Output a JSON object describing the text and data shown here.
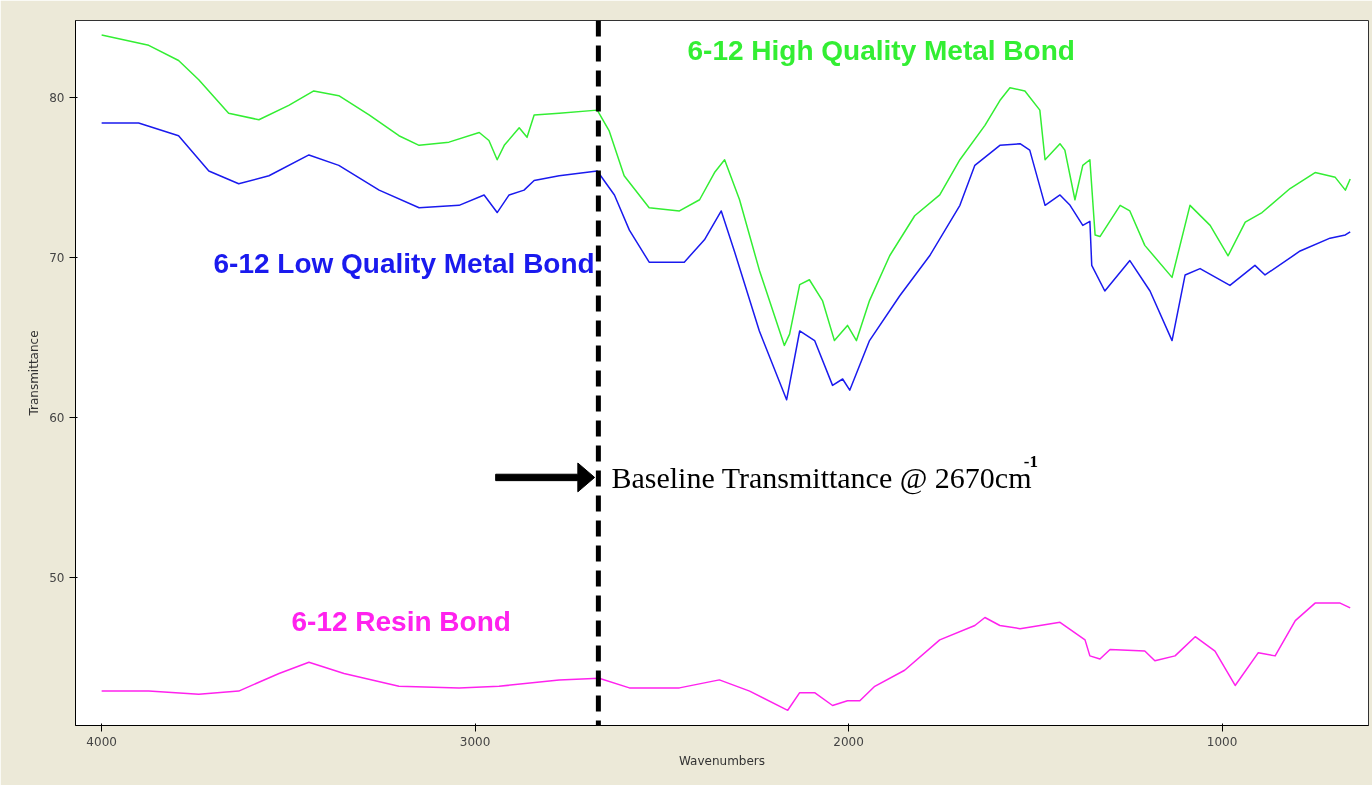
{
  "chart_data": {
    "type": "line",
    "xlabel": "Wavenumbers",
    "ylabel": "Transmittance",
    "xlim": [
      4070,
      608
    ],
    "ylim": [
      40.75,
      84.8
    ],
    "xticks": [
      4000,
      3000,
      2000,
      1000
    ],
    "yticks": [
      50,
      60,
      70,
      80
    ],
    "grid": false,
    "series": [
      {
        "name": "6-12 High Quality Metal Bond",
        "color": "#33ee33",
        "x": [
          4000,
          3874,
          3794,
          3740,
          3660,
          3579,
          3499,
          3432,
          3365,
          3284,
          3204,
          3150,
          3070,
          2989,
          2963,
          2941,
          2922,
          2882,
          2861,
          2842,
          2775,
          2673,
          2641,
          2601,
          2534,
          2453,
          2399,
          2359,
          2332,
          2292,
          2239,
          2172,
          2158,
          2131,
          2105,
          2070,
          2038,
          2003,
          1979,
          1944,
          1890,
          1823,
          1756,
          1702,
          1635,
          1595,
          1568,
          1528,
          1488,
          1474,
          1434,
          1421,
          1394,
          1373,
          1354,
          1340,
          1327,
          1273,
          1247,
          1207,
          1134,
          1086,
          1032,
          984,
          938,
          893,
          818,
          751,
          697,
          670,
          657
        ],
        "values": [
          83.9,
          83.25,
          82.3,
          81.1,
          79.0,
          78.6,
          79.5,
          80.4,
          80.1,
          78.9,
          77.6,
          77.0,
          77.2,
          77.8,
          77.3,
          76.1,
          77.0,
          78.1,
          77.5,
          78.9,
          79.0,
          79.2,
          77.9,
          75.1,
          73.1,
          72.9,
          73.6,
          75.3,
          76.1,
          73.6,
          69.2,
          64.5,
          65.2,
          68.3,
          68.6,
          67.3,
          64.8,
          65.75,
          64.8,
          67.3,
          70.1,
          72.6,
          73.9,
          76.1,
          78.25,
          79.8,
          80.6,
          80.4,
          79.2,
          76.1,
          77.1,
          76.7,
          73.6,
          75.75,
          76.1,
          71.4,
          71.3,
          73.25,
          72.9,
          70.75,
          68.75,
          73.25,
          72.0,
          70.1,
          72.2,
          72.8,
          74.3,
          75.3,
          75.0,
          74.2,
          74.9
        ]
      },
      {
        "name": "6-12 Low Quality Metal Bond",
        "color": "#1a1aee",
        "x": [
          4000,
          3901,
          3794,
          3713,
          3633,
          3552,
          3445,
          3365,
          3257,
          3150,
          3043,
          2976,
          2941,
          2909,
          2869,
          2842,
          2775,
          2673,
          2627,
          2587,
          2534,
          2440,
          2386,
          2341,
          2306,
          2239,
          2166,
          2131,
          2091,
          2043,
          2016,
          1997,
          1944,
          1863,
          1783,
          1702,
          1662,
          1595,
          1541,
          1515,
          1474,
          1434,
          1407,
          1373,
          1354,
          1349,
          1314,
          1247,
          1193,
          1134,
          1099,
          1059,
          979,
          912,
          885,
          791,
          711,
          670,
          657
        ],
        "values": [
          78.4,
          78.4,
          77.6,
          75.4,
          74.6,
          75.1,
          76.4,
          75.75,
          74.2,
          73.1,
          73.25,
          73.9,
          72.8,
          73.9,
          74.2,
          74.8,
          75.1,
          75.4,
          73.9,
          71.7,
          69.7,
          69.7,
          71.1,
          72.9,
          70.4,
          65.4,
          61.1,
          65.4,
          64.8,
          62.0,
          62.4,
          61.7,
          64.8,
          67.6,
          70.1,
          73.25,
          75.75,
          77.0,
          77.1,
          76.7,
          73.25,
          73.9,
          73.25,
          72.0,
          72.25,
          69.5,
          67.9,
          69.8,
          67.9,
          64.8,
          68.9,
          69.3,
          68.25,
          69.5,
          68.9,
          70.4,
          71.2,
          71.4,
          71.6
        ]
      },
      {
        "name": "6-12 Resin Bond",
        "color": "#ff22ee",
        "x": [
          4000,
          3874,
          3740,
          3633,
          3525,
          3445,
          3351,
          3204,
          3043,
          2936,
          2775,
          2668,
          2587,
          2453,
          2346,
          2265,
          2163,
          2131,
          2091,
          2043,
          2003,
          1970,
          1930,
          1850,
          1756,
          1662,
          1635,
          1595,
          1541,
          1434,
          1367,
          1354,
          1327,
          1300,
          1207,
          1180,
          1126,
          1072,
          1019,
          965,
          903,
          858,
          804,
          751,
          684,
          657
        ],
        "values": [
          42.9,
          42.9,
          42.7,
          42.9,
          44.0,
          44.7,
          44.0,
          43.2,
          43.1,
          43.2,
          43.6,
          43.7,
          43.1,
          43.1,
          43.6,
          42.9,
          41.7,
          42.8,
          42.8,
          42.0,
          42.3,
          42.3,
          43.2,
          44.2,
          46.1,
          47.0,
          47.5,
          47.0,
          46.8,
          47.2,
          46.1,
          45.1,
          44.9,
          45.5,
          45.4,
          44.8,
          45.1,
          46.3,
          45.4,
          43.25,
          45.3,
          45.1,
          47.3,
          48.4,
          48.4,
          48.1
        ]
      }
    ],
    "ref_lines": [
      {
        "axis": "x",
        "value": 2670,
        "color": "#000000",
        "line_style": "dashed"
      }
    ],
    "annotations": [
      {
        "text": "Baseline Transmittance @ 2670cm$^{-1}$",
        "x": 2670,
        "y": 56.25
      }
    ]
  }
}
